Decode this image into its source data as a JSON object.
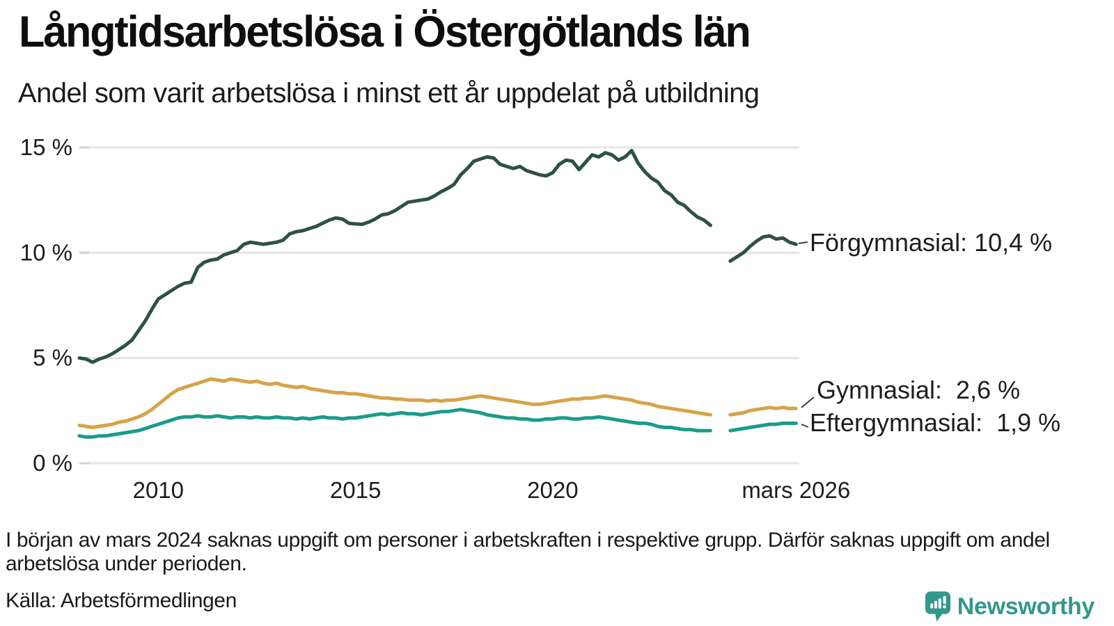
{
  "header": {
    "title": "Långtidsarbetslösa i Östergötlands län",
    "subtitle": "Andel som varit arbetslösa i minst ett år uppdelat på utbildning"
  },
  "footnote": "I början av mars 2024 saknas uppgift om personer i arbetskraften i respektive grupp. Därför saknas uppgift om andel arbetslösa under perioden.",
  "source": "Källa: Arbetsförmedlingen",
  "logo": {
    "label": "Newsworthy",
    "color": "#33978c",
    "icon": "newsworthy-pin-chart-icon"
  },
  "chart_data": {
    "type": "line",
    "title": "Långtidsarbetslösa i Östergötlands län",
    "subtitle": "Andel som varit arbetslösa i minst ett år uppdelat på utbildning",
    "grid": "horizontal",
    "legend_position": "end-of-line-labels",
    "x_start": 2008.0,
    "x_step": 0.1666667,
    "x_axis": {
      "ticks": [
        {
          "label": "2010",
          "year": 2010
        },
        {
          "label": "2015",
          "year": 2015
        },
        {
          "label": "2020",
          "year": 2020
        },
        {
          "label": "mars 2026",
          "year": 2026.1667
        }
      ]
    },
    "y_axis": {
      "unit": "%",
      "range": [
        0,
        15
      ],
      "ticks": [
        {
          "value": 0,
          "label": "0 %"
        },
        {
          "value": 5,
          "label": "5 %"
        },
        {
          "value": 10,
          "label": "10 %"
        },
        {
          "value": 15,
          "label": "15 %"
        }
      ]
    },
    "data_gap": {
      "missing_period": "mars 2024",
      "x_range": [
        2024.1,
        2024.45
      ]
    },
    "series": [
      {
        "name": "Förgymnasial",
        "slug": "forgymnasial",
        "color": "#2c5148",
        "end_label": "Förgymnasial: 10,4 %",
        "last_value": 10.4,
        "values": [
          5,
          4.95,
          4.8,
          4.95,
          5.05,
          5.2,
          5.4,
          5.6,
          5.85,
          6.3,
          6.75,
          7.3,
          7.8,
          8,
          8.2,
          8.4,
          8.55,
          8.6,
          9.3,
          9.55,
          9.65,
          9.7,
          9.9,
          10,
          10.1,
          10.4,
          10.5,
          10.45,
          10.4,
          10.45,
          10.5,
          10.6,
          10.9,
          11,
          11.05,
          11.15,
          11.25,
          11.4,
          11.55,
          11.65,
          11.6,
          11.4,
          11.37,
          11.35,
          11.45,
          11.6,
          11.8,
          11.85,
          12,
          12.2,
          12.4,
          12.45,
          12.5,
          12.55,
          12.7,
          12.9,
          13.05,
          13.25,
          13.7,
          14,
          14.35,
          14.45,
          14.55,
          14.5,
          14.2,
          14.1,
          14,
          14.1,
          13.9,
          13.8,
          13.7,
          13.65,
          13.8,
          14.2,
          14.4,
          14.35,
          13.95,
          14.3,
          14.65,
          14.55,
          14.75,
          14.65,
          14.4,
          14.55,
          14.85,
          14.25,
          13.85,
          13.55,
          13.35,
          12.95,
          12.75,
          12.4,
          12.25,
          11.95,
          11.7,
          11.55,
          11.3,
          null,
          null,
          9.6,
          9.8,
          10,
          10.3,
          10.55,
          10.75,
          10.8,
          10.65,
          10.7,
          10.5,
          10.4
        ]
      },
      {
        "name": "Gymnasial",
        "slug": "gymnasial",
        "color": "#d7a348",
        "end_label": "Gymnasial:  2,6 %",
        "last_value": 2.6,
        "values": [
          1.8,
          1.75,
          1.7,
          1.75,
          1.8,
          1.85,
          1.95,
          2,
          2.1,
          2.2,
          2.35,
          2.55,
          2.8,
          3.05,
          3.3,
          3.5,
          3.6,
          3.7,
          3.8,
          3.9,
          4,
          3.95,
          3.9,
          4,
          3.95,
          3.9,
          3.85,
          3.9,
          3.8,
          3.75,
          3.8,
          3.7,
          3.65,
          3.6,
          3.65,
          3.55,
          3.5,
          3.45,
          3.4,
          3.35,
          3.35,
          3.3,
          3.3,
          3.25,
          3.2,
          3.15,
          3.1,
          3.1,
          3.05,
          3.05,
          3,
          3,
          3,
          2.95,
          3,
          2.95,
          3,
          3,
          3.05,
          3.1,
          3.15,
          3.2,
          3.15,
          3.1,
          3.05,
          3,
          2.95,
          2.9,
          2.85,
          2.8,
          2.8,
          2.85,
          2.9,
          2.95,
          3,
          3.05,
          3.05,
          3.1,
          3.1,
          3.15,
          3.2,
          3.15,
          3.1,
          3.05,
          3,
          2.9,
          2.85,
          2.8,
          2.7,
          2.65,
          2.6,
          2.55,
          2.5,
          2.45,
          2.4,
          2.35,
          2.3,
          null,
          null,
          2.3,
          2.35,
          2.4,
          2.5,
          2.55,
          2.6,
          2.65,
          2.6,
          2.65,
          2.6,
          2.6
        ]
      },
      {
        "name": "Eftergymnasial",
        "slug": "eftergymnasial",
        "color": "#1a9c8a",
        "end_label": "Eftergymnasial:  1,9 %",
        "last_value": 1.9,
        "values": [
          1.3,
          1.25,
          1.25,
          1.3,
          1.3,
          1.35,
          1.4,
          1.45,
          1.5,
          1.55,
          1.65,
          1.75,
          1.85,
          1.95,
          2.05,
          2.15,
          2.2,
          2.2,
          2.25,
          2.2,
          2.2,
          2.25,
          2.2,
          2.15,
          2.2,
          2.2,
          2.15,
          2.2,
          2.15,
          2.15,
          2.2,
          2.15,
          2.15,
          2.1,
          2.15,
          2.1,
          2.15,
          2.2,
          2.15,
          2.15,
          2.1,
          2.15,
          2.15,
          2.2,
          2.25,
          2.3,
          2.35,
          2.3,
          2.35,
          2.4,
          2.35,
          2.35,
          2.3,
          2.35,
          2.4,
          2.45,
          2.45,
          2.5,
          2.55,
          2.5,
          2.45,
          2.4,
          2.3,
          2.25,
          2.2,
          2.15,
          2.15,
          2.1,
          2.1,
          2.05,
          2.05,
          2.1,
          2.1,
          2.15,
          2.15,
          2.1,
          2.1,
          2.15,
          2.15,
          2.2,
          2.15,
          2.1,
          2.05,
          2,
          1.95,
          1.9,
          1.9,
          1.85,
          1.75,
          1.7,
          1.7,
          1.65,
          1.6,
          1.6,
          1.55,
          1.55,
          1.55,
          null,
          null,
          1.55,
          1.6,
          1.65,
          1.7,
          1.75,
          1.8,
          1.85,
          1.85,
          1.9,
          1.9,
          1.9
        ]
      }
    ]
  }
}
